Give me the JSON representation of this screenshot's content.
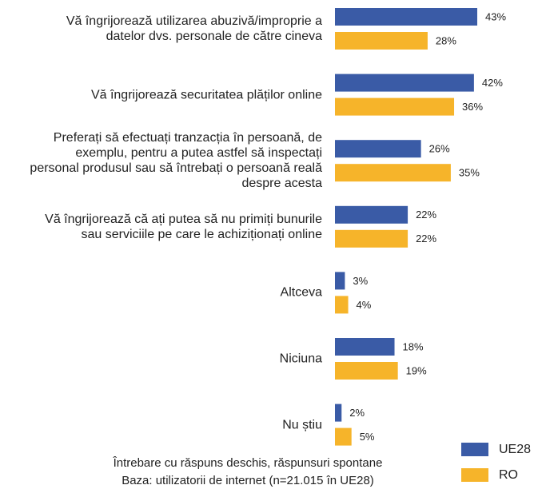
{
  "chart_data": {
    "type": "barh",
    "categories": [
      "Vă îngrijorează utilizarea abuzivă/improprie a\ndatelor dvs. personale de către cineva",
      "Vă îngrijorează securitatea plăților online",
      "Preferați să efectuați tranzacția în persoană, de\nexemplu, pentru a putea astfel să inspectați\npersonal produsul sau să întrebați o persoană reală\ndespre acesta",
      "Vă îngrijorează că ați putea să nu primiți bunurile\nsau serviciile pe care le achiziționați online",
      "Altceva",
      "Niciuna",
      "Nu știu"
    ],
    "series": [
      {
        "name": "UE28",
        "color": "#3a5ba6",
        "values": [
          43,
          42,
          26,
          22,
          3,
          18,
          2
        ],
        "value_labels": [
          "43%",
          "42%",
          "26%",
          "22%",
          "3%",
          "18%",
          "2%"
        ]
      },
      {
        "name": "RO",
        "color": "#f6b42a",
        "values": [
          28,
          36,
          35,
          22,
          4,
          19,
          5
        ],
        "value_labels": [
          "28%",
          "36%",
          "35%",
          "22%",
          "4%",
          "19%",
          "5%"
        ]
      }
    ],
    "notes": [
      "Întrebare cu răspuns deschis, răspunsuri spontane",
      "Baza: utilizatorii de internet (n=21.015 în UE28)"
    ],
    "legend": "bottom-right"
  }
}
